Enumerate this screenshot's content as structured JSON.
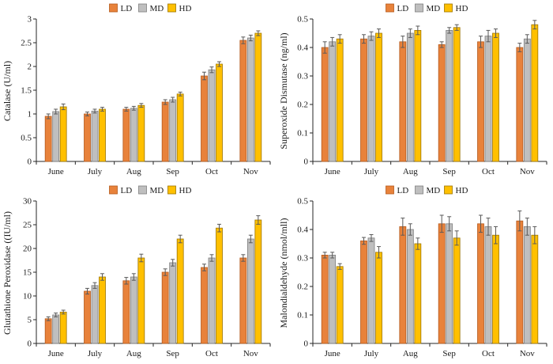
{
  "legend": [
    "LD",
    "MD",
    "HD"
  ],
  "colors": {
    "LD": {
      "fill": "#E8823B",
      "stroke": "#B55A1D"
    },
    "MD": {
      "fill": "#BFBFBF",
      "stroke": "#7F7F7F"
    },
    "HD": {
      "fill": "#FFC000",
      "stroke": "#9C7400"
    },
    "error_bar": "#595959",
    "axis": "#262626"
  },
  "chart_data": [
    {
      "type": "bar",
      "title": "",
      "ylabel": "Catalase (U/ml)",
      "xlabel": "",
      "categories": [
        "June",
        "July",
        "Aug",
        "Sep",
        "Oct",
        "Nov"
      ],
      "ylim": [
        0,
        3
      ],
      "ystep": 0.5,
      "grid": false,
      "legend_position": "top-center",
      "error_bars": true,
      "series": [
        {
          "name": "LD",
          "values": [
            0.95,
            1.0,
            1.1,
            1.25,
            1.8,
            2.55
          ],
          "errors": [
            0.05,
            0.04,
            0.04,
            0.05,
            0.08,
            0.07
          ]
        },
        {
          "name": "MD",
          "values": [
            1.05,
            1.06,
            1.12,
            1.3,
            1.93,
            2.6
          ],
          "errors": [
            0.05,
            0.04,
            0.04,
            0.05,
            0.06,
            0.06
          ]
        },
        {
          "name": "HD",
          "values": [
            1.15,
            1.1,
            1.18,
            1.42,
            2.05,
            2.7
          ],
          "errors": [
            0.06,
            0.04,
            0.04,
            0.04,
            0.05,
            0.05
          ]
        }
      ]
    },
    {
      "type": "bar",
      "title": "",
      "ylabel": "Superoxide Dismutase (ng/ml)",
      "xlabel": "",
      "categories": [
        "June",
        "July",
        "Aug",
        "Sep",
        "Oct",
        "Nov"
      ],
      "ylim": [
        0,
        0.5
      ],
      "ystep": 0.1,
      "grid": false,
      "legend_position": "top-center",
      "error_bars": true,
      "series": [
        {
          "name": "LD",
          "values": [
            0.4,
            0.43,
            0.42,
            0.41,
            0.42,
            0.4
          ],
          "errors": [
            0.02,
            0.015,
            0.02,
            0.01,
            0.02,
            0.015
          ]
        },
        {
          "name": "MD",
          "values": [
            0.42,
            0.44,
            0.45,
            0.46,
            0.44,
            0.43
          ],
          "errors": [
            0.015,
            0.015,
            0.015,
            0.01,
            0.02,
            0.015
          ]
        },
        {
          "name": "HD",
          "values": [
            0.43,
            0.45,
            0.46,
            0.47,
            0.45,
            0.48
          ],
          "errors": [
            0.015,
            0.015,
            0.015,
            0.01,
            0.015,
            0.015
          ]
        }
      ]
    },
    {
      "type": "bar",
      "title": "",
      "ylabel": "Glutathione Peroxidase ((IU/ml)",
      "xlabel": "",
      "categories": [
        "June",
        "July",
        "Aug",
        "Sep",
        "Oct",
        "Nov"
      ],
      "ylim": [
        0,
        30
      ],
      "ystep": 5,
      "grid": false,
      "legend_position": "top-center",
      "error_bars": true,
      "series": [
        {
          "name": "LD",
          "values": [
            5.2,
            11.0,
            13.2,
            15.0,
            16.0,
            18.0
          ],
          "errors": [
            0.4,
            0.6,
            0.7,
            0.7,
            0.7,
            0.7
          ]
        },
        {
          "name": "MD",
          "values": [
            6.0,
            12.2,
            14.0,
            17.0,
            18.0,
            22.0
          ],
          "errors": [
            0.4,
            0.6,
            0.7,
            0.7,
            0.7,
            0.8
          ]
        },
        {
          "name": "HD",
          "values": [
            6.6,
            14.0,
            18.0,
            22.0,
            24.3,
            26.0
          ],
          "errors": [
            0.4,
            0.7,
            0.8,
            0.8,
            0.8,
            0.9
          ]
        }
      ]
    },
    {
      "type": "bar",
      "title": "",
      "ylabel": "Malondialdehyde (nmol/mll)",
      "xlabel": "",
      "categories": [
        "June",
        "July",
        "Aug",
        "Sep",
        "Oct",
        "Nov"
      ],
      "ylim": [
        0,
        0.5
      ],
      "ystep": 0.1,
      "grid": false,
      "legend_position": "top-center",
      "error_bars": true,
      "series": [
        {
          "name": "LD",
          "values": [
            0.31,
            0.36,
            0.41,
            0.42,
            0.42,
            0.43
          ],
          "errors": [
            0.01,
            0.012,
            0.03,
            0.03,
            0.03,
            0.035
          ]
        },
        {
          "name": "MD",
          "values": [
            0.31,
            0.37,
            0.4,
            0.42,
            0.41,
            0.41
          ],
          "errors": [
            0.01,
            0.012,
            0.02,
            0.025,
            0.03,
            0.03
          ]
        },
        {
          "name": "HD",
          "values": [
            0.27,
            0.32,
            0.35,
            0.37,
            0.38,
            0.38
          ],
          "errors": [
            0.01,
            0.02,
            0.02,
            0.025,
            0.03,
            0.03
          ]
        }
      ]
    }
  ]
}
